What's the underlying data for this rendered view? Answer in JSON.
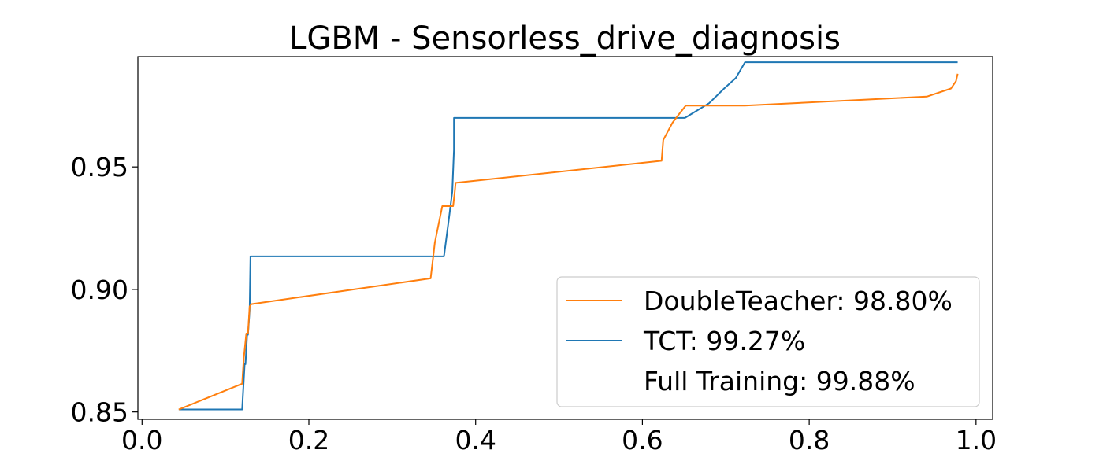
{
  "chart_data": {
    "type": "line",
    "title": "LGBM - Sensorless_drive_diagnosis",
    "xlabel": "",
    "ylabel": "",
    "xlim": [
      -0.005,
      1.02
    ],
    "ylim": [
      0.847,
      0.995
    ],
    "x_ticks": [
      0.0,
      0.2,
      0.4,
      0.6,
      0.8,
      1.0
    ],
    "x_tick_labels": [
      "0.0",
      "0.2",
      "0.4",
      "0.6",
      "0.8",
      "1.0"
    ],
    "y_ticks": [
      0.85,
      0.9,
      0.95
    ],
    "y_tick_labels": [
      "0.85",
      "0.90",
      "0.95"
    ],
    "grid": false,
    "legend_position": "lower-right",
    "legend_entries": [
      {
        "label": "DoubleTeacher: 98.80%",
        "color": "#ff7f0e",
        "has_line": true
      },
      {
        "label": "TCT: 99.27%",
        "color": "#1f77b4",
        "has_line": true
      },
      {
        "label": "Full Training: 99.88%",
        "color": "#ffffff",
        "has_line": false
      }
    ],
    "series": [
      {
        "name": "DoubleTeacher",
        "color": "#ff7f0e",
        "x": [
          0.044,
          0.12,
          0.122,
          0.122,
          0.125,
          0.127,
          0.129,
          0.131,
          0.346,
          0.349,
          0.351,
          0.36,
          0.373,
          0.375,
          0.376,
          0.623,
          0.625,
          0.636,
          0.645,
          0.652,
          0.723,
          0.941,
          0.97,
          0.976,
          0.978
        ],
        "y": [
          0.851,
          0.8615,
          0.872,
          0.872,
          0.882,
          0.882,
          0.893,
          0.894,
          0.9045,
          0.913,
          0.919,
          0.934,
          0.934,
          0.94,
          0.9435,
          0.9525,
          0.961,
          0.968,
          0.972,
          0.975,
          0.975,
          0.9787,
          0.982,
          0.985,
          0.988
        ]
      },
      {
        "name": "TCT",
        "color": "#1f77b4",
        "x": [
          0.044,
          0.12,
          0.123,
          0.124,
          0.126,
          0.127,
          0.129,
          0.13,
          0.131,
          0.362,
          0.368,
          0.372,
          0.374,
          0.374,
          0.375,
          0.651,
          0.68,
          0.698,
          0.712,
          0.723,
          0.978
        ],
        "y": [
          0.851,
          0.851,
          0.8695,
          0.8695,
          0.8815,
          0.8815,
          0.8915,
          0.9135,
          0.9135,
          0.9135,
          0.929,
          0.94,
          0.957,
          0.97,
          0.97,
          0.97,
          0.976,
          0.982,
          0.9863,
          0.9927,
          0.9927
        ]
      }
    ]
  }
}
